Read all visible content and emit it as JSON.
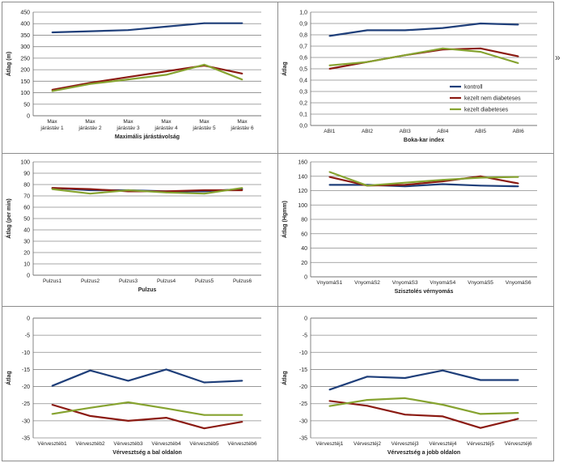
{
  "colors": {
    "kontroll": "#1f3f7a",
    "kezelt_nem_diabeteses": "#8b1a12",
    "kezelt_diabeteses": "#86a330"
  },
  "side_mark": "»",
  "chart_data": [
    {
      "type": "line",
      "title": "",
      "xlabel": "Maximális járástávolság",
      "ylabel": "Átlag (m)",
      "categories": [
        "Max\njárástáv 1",
        "Max\njárástáv 2",
        "Max\njárástáv 3",
        "Max\njárástáv 4",
        "Max\njárástáv 5",
        "Max\njárástáv 6"
      ],
      "ylim": [
        0,
        450
      ],
      "yticks": [
        0,
        50,
        100,
        150,
        200,
        250,
        300,
        350,
        400,
        450
      ],
      "yticklabels": [
        "0",
        "50",
        "100",
        "150",
        "200",
        "250",
        "300",
        "350",
        "400",
        "450"
      ],
      "series": [
        {
          "name": "kontroll",
          "values": [
            362,
            367,
            372,
            387,
            402,
            402
          ]
        },
        {
          "name": "kezelt nem diabeteses",
          "values": [
            113,
            143,
            168,
            193,
            218,
            183
          ]
        },
        {
          "name": "kezelt diabeteses",
          "values": [
            107,
            138,
            158,
            178,
            222,
            157
          ]
        }
      ],
      "legend": null
    },
    {
      "type": "line",
      "title": "",
      "xlabel": "Boka-kar index",
      "ylabel": "Átlag",
      "categories": [
        "ABI1",
        "ABI2",
        "ABI3",
        "ABI4",
        "ABI5",
        "ABI6"
      ],
      "ylim": [
        0,
        1.0
      ],
      "yticks": [
        0,
        0.1,
        0.2,
        0.3,
        0.4,
        0.5,
        0.6,
        0.7,
        0.8,
        0.9,
        1.0
      ],
      "yticklabels": [
        "0,0",
        "0,1",
        "0,2",
        "0,3",
        "0,4",
        "0,5",
        "0,6",
        "0,7",
        "0,8",
        "0,9",
        "1,0"
      ],
      "series": [
        {
          "name": "kontroll",
          "values": [
            0.79,
            0.84,
            0.84,
            0.86,
            0.9,
            0.89
          ]
        },
        {
          "name": "kezelt nem diabeteses",
          "values": [
            0.5,
            0.56,
            0.62,
            0.67,
            0.68,
            0.61
          ]
        },
        {
          "name": "kezelt diabeteses",
          "values": [
            0.53,
            0.56,
            0.62,
            0.68,
            0.65,
            0.55
          ]
        }
      ],
      "legend": {
        "placement": "right",
        "entries": [
          "kontroll",
          "kezelt nem diabeteses",
          "kezelt diabeteses"
        ]
      }
    },
    {
      "type": "line",
      "title": "",
      "xlabel": "Pulzus",
      "ylabel": "Átlag (per min)",
      "categories": [
        "Pulzus1",
        "Pulzus2",
        "Pulzus3",
        "Pulzus4",
        "Pulzus5",
        "Pulzus6"
      ],
      "ylim": [
        0,
        100
      ],
      "yticks": [
        0,
        10,
        20,
        30,
        40,
        50,
        60,
        70,
        80,
        90,
        100
      ],
      "yticklabels": [
        "0",
        "10",
        "20",
        "30",
        "40",
        "50",
        "60",
        "70",
        "80",
        "90",
        "100"
      ],
      "series": [
        {
          "name": "kontroll",
          "values": [
            77,
            75,
            75,
            74,
            74,
            76
          ]
        },
        {
          "name": "kezelt nem diabeteses",
          "values": [
            77,
            76,
            74,
            74,
            75,
            75
          ]
        },
        {
          "name": "kezelt diabeteses",
          "values": [
            76,
            72,
            75,
            73,
            72,
            77
          ]
        }
      ],
      "legend": null
    },
    {
      "type": "line",
      "title": "",
      "xlabel": "Szisztolés vérnyomás",
      "ylabel": "Átlag (Hgmm)",
      "categories": [
        "VnyomáS1",
        "VnyomáS2",
        "VnyomáS3",
        "VnyomáS4",
        "VnyomáS5",
        "VnyomáS6"
      ],
      "ylim": [
        0,
        160
      ],
      "yticks": [
        0,
        20,
        40,
        60,
        80,
        100,
        120,
        140,
        160
      ],
      "yticklabels": [
        "0",
        "20",
        "40",
        "60",
        "80",
        "100",
        "120",
        "140",
        "160"
      ],
      "series": [
        {
          "name": "kontroll",
          "values": [
            128,
            128,
            126,
            129,
            127,
            126
          ]
        },
        {
          "name": "kezelt nem diabeteses",
          "values": [
            139,
            127,
            128,
            133,
            140,
            130
          ]
        },
        {
          "name": "kezelt diabeteses",
          "values": [
            146,
            127,
            131,
            135,
            138,
            139
          ]
        }
      ],
      "legend": null
    },
    {
      "type": "line",
      "title": "",
      "xlabel": "Vérvesztség a bal oldalon",
      "ylabel": "Átlag",
      "categories": [
        "Vérvesztéb1",
        "Vérvesztéb2",
        "Vérvesztéb3",
        "Vérvesztéb4",
        "Vérvesztéb5",
        "Vérvesztéb6"
      ],
      "ylim": [
        -35,
        0
      ],
      "yticks": [
        -35,
        -30,
        -25,
        -20,
        -15,
        -10,
        -5,
        0
      ],
      "yticklabels": [
        "-35",
        "-30",
        "-25",
        "-20",
        "-15",
        "-10",
        "-5",
        "0"
      ],
      "series": [
        {
          "name": "kontroll",
          "values": [
            -19.8,
            -15.3,
            -18.3,
            -15.0,
            -18.8,
            -18.3
          ]
        },
        {
          "name": "kezelt nem diabeteses",
          "values": [
            -25.3,
            -28.6,
            -30.0,
            -29.1,
            -32.2,
            -30.3
          ]
        },
        {
          "name": "kezelt diabeteses",
          "values": [
            -28.0,
            -26.2,
            -24.6,
            -26.4,
            -28.3,
            -28.3
          ]
        }
      ],
      "legend": null
    },
    {
      "type": "line",
      "title": "",
      "xlabel": "Vérvesztség a jobb oldalon",
      "ylabel": "Átlag",
      "categories": [
        "Vérvesztéj1",
        "Vérvesztéj2",
        "Vérvesztéj3",
        "Vérvesztéj4",
        "Vérvesztéj5",
        "Vérvesztéj6"
      ],
      "ylim": [
        -35,
        0
      ],
      "yticks": [
        -35,
        -30,
        -25,
        -20,
        -15,
        -10,
        -5,
        0
      ],
      "yticklabels": [
        "-35",
        "-30",
        "-25",
        "-20",
        "-15",
        "-10",
        "-5",
        "0"
      ],
      "series": [
        {
          "name": "kontroll",
          "values": [
            -20.9,
            -17.1,
            -17.5,
            -15.3,
            -18.1,
            -18.1
          ]
        },
        {
          "name": "kezelt nem diabeteses",
          "values": [
            -24.2,
            -25.6,
            -28.2,
            -28.7,
            -32.1,
            -29.4
          ]
        },
        {
          "name": "kezelt diabeteses",
          "values": [
            -25.7,
            -23.9,
            -23.4,
            -25.3,
            -28.0,
            -27.7
          ]
        }
      ],
      "legend": null
    }
  ]
}
